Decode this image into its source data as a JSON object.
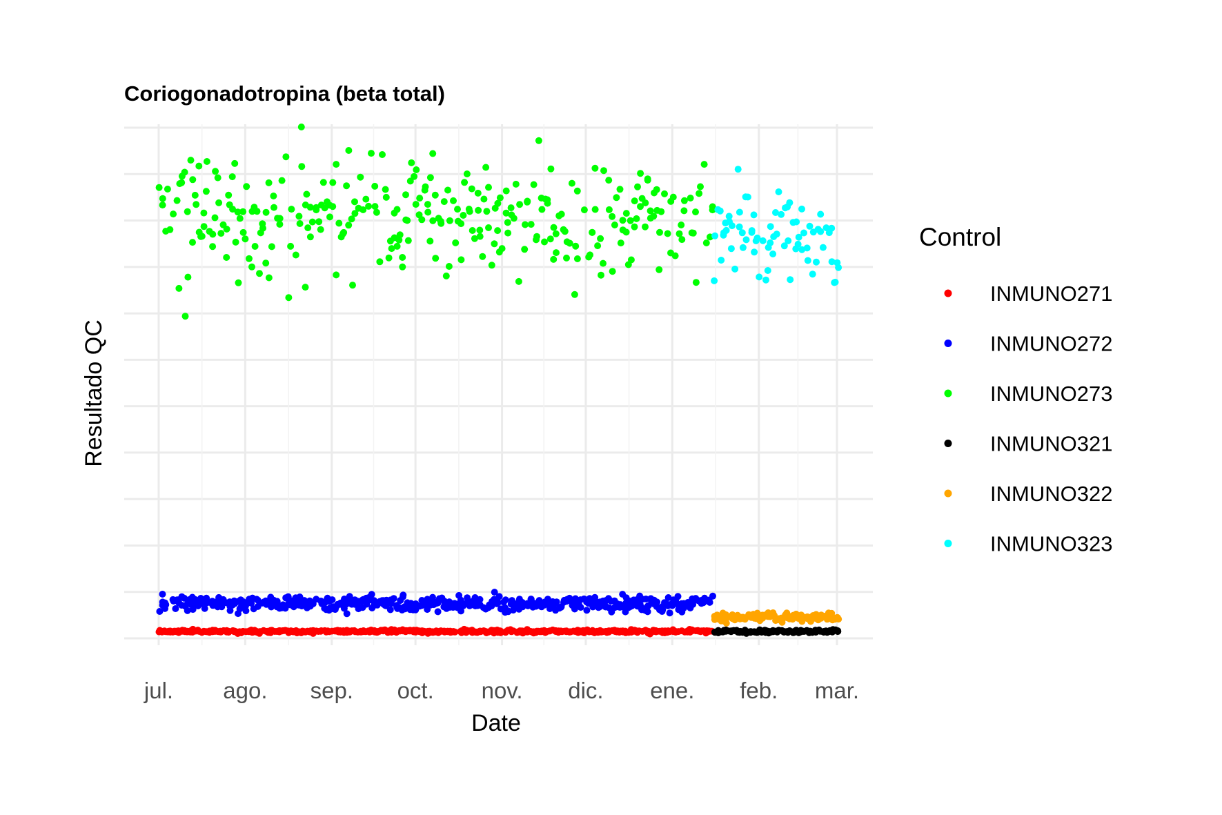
{
  "chart_data": {
    "type": "scatter",
    "title": "Coriogonadotropina (beta total)",
    "xlabel": "Date",
    "ylabel": "Resultado QC",
    "x_start": "2021-07-01",
    "x_end": "2022-03-01",
    "x_ticks": [
      {
        "label": "jul.",
        "date": "2021-07-01"
      },
      {
        "label": "ago.",
        "date": "2021-08-01"
      },
      {
        "label": "sep.",
        "date": "2021-09-01"
      },
      {
        "label": "oct.",
        "date": "2021-10-01"
      },
      {
        "label": "nov.",
        "date": "2021-11-01"
      },
      {
        "label": "dic.",
        "date": "2021-12-01"
      },
      {
        "label": "ene.",
        "date": "2022-01-01"
      },
      {
        "label": "feb.",
        "date": "2022-02-01"
      },
      {
        "label": "mar.",
        "date": "2022-03-01"
      }
    ],
    "y_tick_labels": "not shown",
    "grid": true,
    "legend": {
      "title": "Control",
      "position": "right"
    },
    "series": [
      {
        "name": "INMUNO271",
        "color": "#ff0000",
        "date_range": [
          "2021-07-01",
          "2022-01-15"
        ],
        "approx_level": 0.15,
        "spread": 0.03,
        "points_per_day": 3
      },
      {
        "name": "INMUNO272",
        "color": "#0000ff",
        "date_range": [
          "2021-07-01",
          "2022-01-15"
        ],
        "approx_level": 0.75,
        "spread": 0.15,
        "points_per_day": 3
      },
      {
        "name": "INMUNO273",
        "color": "#00ff00",
        "date_range": [
          "2021-07-01",
          "2022-01-15"
        ],
        "approx_level": 9.0,
        "spread": 1.2,
        "points_per_day": 2
      },
      {
        "name": "INMUNO321",
        "color": "#000000",
        "date_range": [
          "2022-01-16",
          "2022-03-01"
        ],
        "approx_level": 0.15,
        "spread": 0.03,
        "points_per_day": 3
      },
      {
        "name": "INMUNO322",
        "color": "#ffa500",
        "date_range": [
          "2022-01-16",
          "2022-03-01"
        ],
        "approx_level": 0.45,
        "spread": 0.08,
        "points_per_day": 3
      },
      {
        "name": "INMUNO323",
        "color": "#00ffff",
        "date_range": [
          "2022-01-16",
          "2022-03-01"
        ],
        "approx_level": 8.7,
        "spread": 1.0,
        "points_per_day": 2
      }
    ]
  }
}
